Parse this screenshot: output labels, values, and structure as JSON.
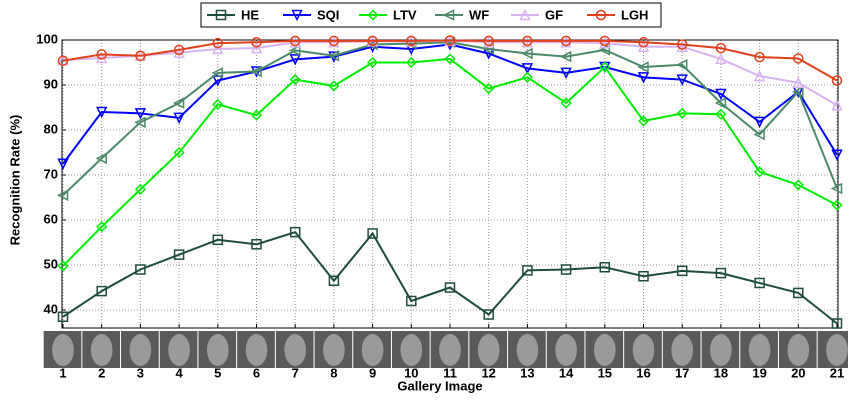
{
  "chart_data": {
    "type": "line",
    "x_label": "Gallery Image",
    "y_label": "Recognition Rate (%)",
    "x": [
      1,
      2,
      3,
      4,
      5,
      6,
      7,
      8,
      9,
      10,
      11,
      12,
      13,
      14,
      15,
      16,
      17,
      18,
      19,
      20,
      21
    ],
    "xlim": [
      1,
      21
    ],
    "xticks": [
      1,
      2,
      3,
      4,
      5,
      6,
      7,
      8,
      9,
      10,
      11,
      12,
      13,
      14,
      15,
      16,
      17,
      18,
      19,
      20,
      21
    ],
    "ylim": [
      36,
      100
    ],
    "yticks": [
      40,
      50,
      60,
      70,
      80,
      90,
      100
    ],
    "grid": true,
    "legend": "top",
    "series": [
      {
        "name": "HE",
        "color": "#1e4d3c",
        "marker": "square",
        "values": [
          38.5,
          44.2,
          49,
          52.3,
          55.6,
          54.6,
          57.3,
          46.5,
          57,
          42,
          45,
          39,
          48.8,
          49,
          49.5,
          47.5,
          48.7,
          48.2,
          46,
          43.8,
          37
        ]
      },
      {
        "name": "SQI",
        "color": "#0000ff",
        "marker": "triangle-down",
        "values": [
          72.5,
          84,
          83.7,
          82.7,
          91,
          93,
          95.7,
          96.3,
          98.5,
          98,
          99,
          97,
          93.7,
          92.7,
          94,
          91.7,
          91.2,
          88,
          81.8,
          88.5,
          74.5
        ]
      },
      {
        "name": "LTV",
        "color": "#00ee00",
        "marker": "diamond",
        "values": [
          49.8,
          58.5,
          66.8,
          75,
          85.7,
          83.3,
          91.2,
          89.8,
          95,
          95,
          95.8,
          89.2,
          91.7,
          86,
          94,
          82,
          83.7,
          83.5,
          70.7,
          67.8,
          63.3
        ]
      },
      {
        "name": "WF",
        "color": "#4a8a6a",
        "marker": "triangle-left",
        "values": [
          65.5,
          73.7,
          81.7,
          86,
          92.7,
          93,
          97.7,
          96.5,
          99,
          99.2,
          99.5,
          98,
          97,
          96.3,
          97.8,
          94,
          94.5,
          86,
          79,
          88.5,
          67
        ]
      },
      {
        "name": "GF",
        "color": "#d8b4f0",
        "marker": "triangle-up",
        "values": [
          95.5,
          96,
          96.5,
          97.2,
          98,
          98.2,
          99.5,
          99.5,
          99.7,
          99.7,
          99.8,
          99.5,
          99.5,
          99.5,
          99.3,
          98.5,
          98.5,
          95.8,
          92,
          90.5,
          85.5
        ]
      },
      {
        "name": "LGH",
        "color": "#e0401a",
        "marker": "circle",
        "values": [
          95.4,
          96.8,
          96.5,
          97.8,
          99.3,
          99.5,
          99.8,
          99.8,
          99.8,
          99.8,
          99.9,
          99.8,
          99.8,
          99.8,
          99.8,
          99.5,
          99,
          98.2,
          96.2,
          95.9,
          91
        ]
      }
    ]
  }
}
